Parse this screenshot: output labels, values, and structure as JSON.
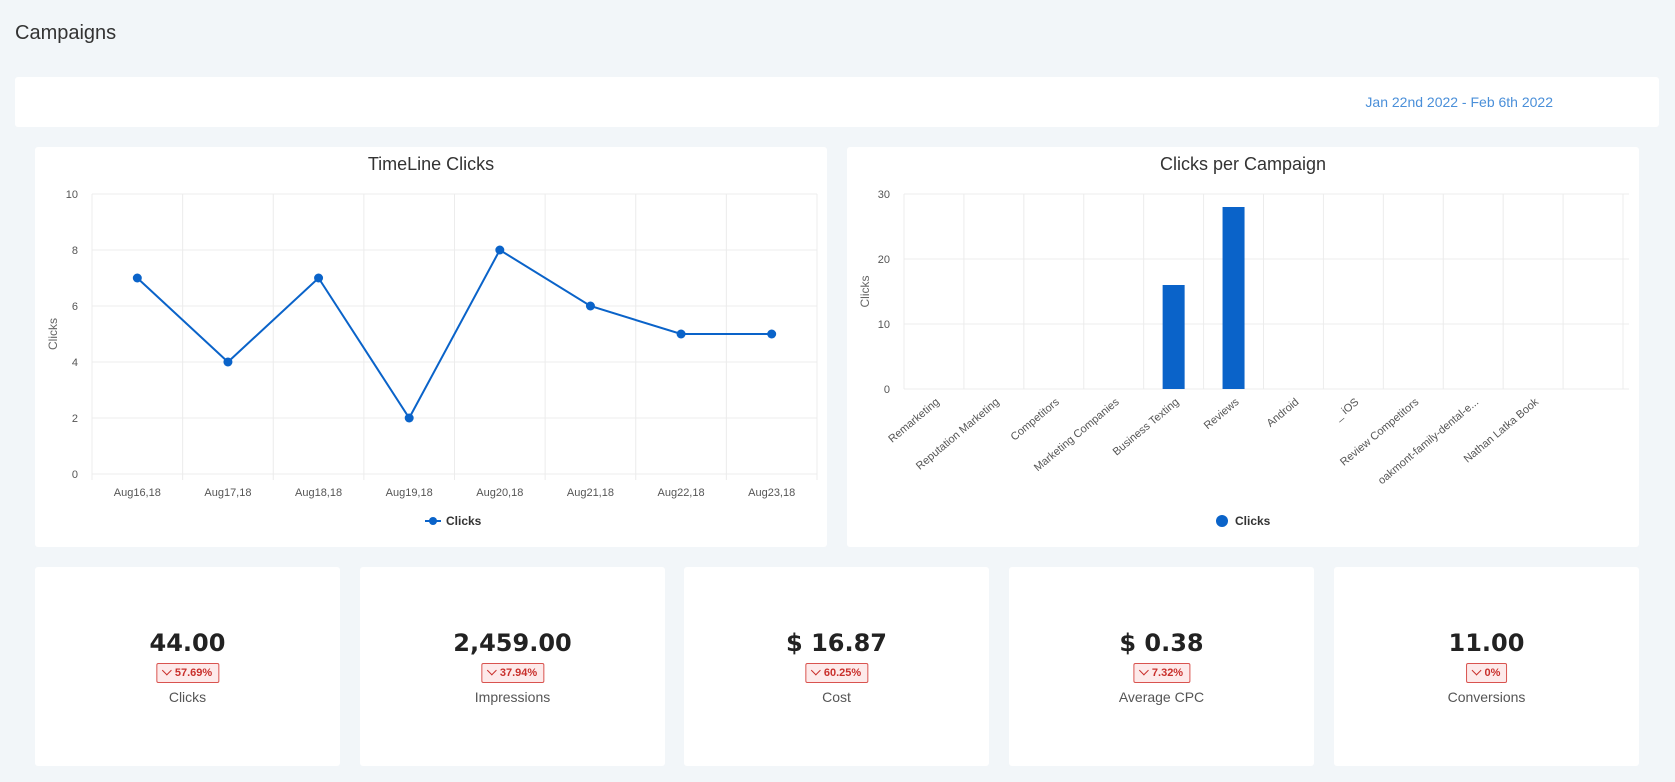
{
  "page": {
    "title": "Campaigns"
  },
  "date_range": {
    "label": "Jan 22nd 2022 - Feb 6th 2022"
  },
  "colors": {
    "series": "#0a63c9",
    "accent": "#4a8fd9",
    "badge_border": "#d9534f"
  },
  "chart_data": [
    {
      "type": "line",
      "title": "TimeLine Clicks",
      "ylabel": "Clicks",
      "xlabel": "",
      "ylim": [
        0,
        10
      ],
      "yticks": [
        0,
        2,
        4,
        6,
        8,
        10
      ],
      "categories": [
        "Aug16,18",
        "Aug17,18",
        "Aug18,18",
        "Aug19,18",
        "Aug20,18",
        "Aug21,18",
        "Aug22,18",
        "Aug23,18"
      ],
      "series": [
        {
          "name": "Clicks",
          "values": [
            7,
            4,
            7,
            2,
            8,
            6,
            5,
            5
          ]
        }
      ],
      "legend": "bottom-center",
      "grid": true
    },
    {
      "type": "bar",
      "title": "Clicks per Campaign",
      "ylabel": "Clicks",
      "xlabel": "",
      "ylim": [
        0,
        30
      ],
      "yticks": [
        0,
        10,
        20,
        30
      ],
      "categories": [
        "Remarketing",
        "Reputation Marketing",
        "Competitors",
        "Marketing Companies",
        "Business Texting",
        "Reviews",
        "Android",
        "_ iOS",
        "Review Competitors",
        "oakmont-family-dental-e...",
        "Nathan Latka Book"
      ],
      "series": [
        {
          "name": "Clicks",
          "values": [
            0,
            0,
            0,
            0,
            16,
            28,
            0,
            0,
            0,
            0,
            0
          ]
        }
      ],
      "legend": "bottom-center",
      "grid": true
    }
  ],
  "kpis": [
    {
      "value": "44.00",
      "change": "57.69%",
      "label": "Clicks"
    },
    {
      "value": "2,459.00",
      "change": "37.94%",
      "label": "Impressions"
    },
    {
      "value": "$ 16.87",
      "change": "60.25%",
      "label": "Cost"
    },
    {
      "value": "$ 0.38",
      "change": "7.32%",
      "label": "Average CPC"
    },
    {
      "value": "11.00",
      "change": "0%",
      "label": "Conversions"
    }
  ]
}
